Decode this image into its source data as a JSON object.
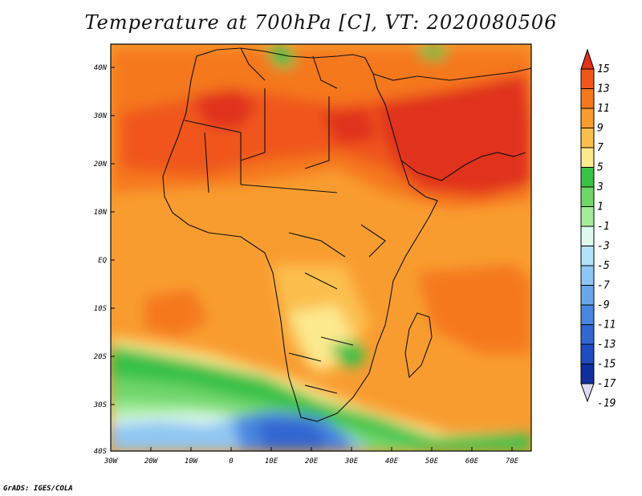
{
  "map": {
    "title": "Temperature at 700hPa [C], VT: 2020080506",
    "credit": "GrADS: IGES/COLA",
    "lat_labels": [
      "40N",
      "30N",
      "20N",
      "10N",
      "EQ",
      "10S",
      "20S",
      "30S",
      "40S"
    ],
    "lon_labels": [
      "30W",
      "20W",
      "10W",
      "0",
      "10E",
      "20E",
      "30E",
      "40E",
      "50E",
      "60E",
      "70E"
    ],
    "colorbar": {
      "labels": [
        "15",
        "13",
        "11",
        "9",
        "7",
        "5",
        "3",
        "1",
        "-1",
        "-3",
        "-5",
        "-7",
        "-9",
        "-11",
        "-13",
        "-15",
        "-17",
        "-19"
      ],
      "colors": [
        "#e0311a",
        "#f0561c",
        "#f5781f",
        "#f99c30",
        "#fcbf4d",
        "#fde98e",
        "#39c14a",
        "#6fd66a",
        "#a4ec9b",
        "#dff8f0",
        "#b4e2fb",
        "#8fc6f3",
        "#6aa7ea",
        "#4a86e0",
        "#3266d1",
        "#1f4cbf",
        "#102e9c",
        "#0a106e"
      ]
    }
  }
}
